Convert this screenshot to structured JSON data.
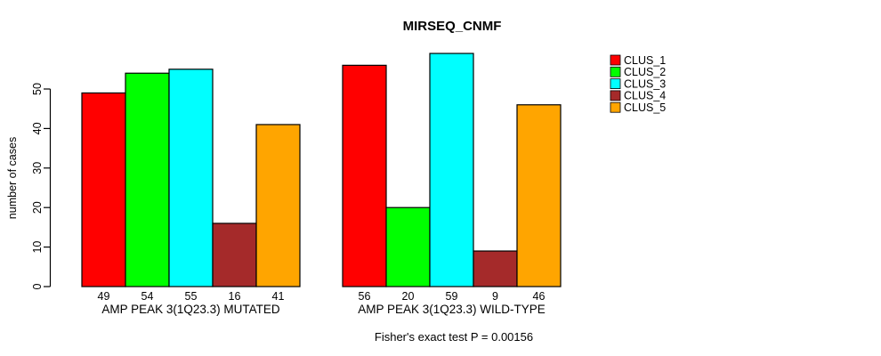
{
  "figure": {
    "background": "#ffffff",
    "text_color": "#000000"
  },
  "chart_data": {
    "type": "bar",
    "title": "MIRSEQ_CNMF",
    "xlabel": "",
    "ylabel": "number of cases",
    "footnote": "Fisher's exact test P = 0.00156",
    "ylim": [
      0,
      59
    ],
    "yticks": [
      0,
      10,
      20,
      30,
      40,
      50
    ],
    "grid": false,
    "legend_position": "right",
    "bar_outline": "#000000",
    "value_labels": true,
    "categories": [
      "AMP PEAK  3(1Q23.3) MUTATED",
      "AMP PEAK  3(1Q23.3) WILD-TYPE"
    ],
    "series": [
      {
        "name": "CLUS_1",
        "color": "#FF0000",
        "values": [
          49,
          56
        ]
      },
      {
        "name": "CLUS_2",
        "color": "#00FF00",
        "values": [
          54,
          20
        ]
      },
      {
        "name": "CLUS_3",
        "color": "#00FFFF",
        "values": [
          55,
          59
        ]
      },
      {
        "name": "CLUS_4",
        "color": "#A52A2A",
        "values": [
          16,
          9
        ]
      },
      {
        "name": "CLUS_5",
        "color": "#FFA500",
        "values": [
          41,
          46
        ]
      }
    ]
  }
}
